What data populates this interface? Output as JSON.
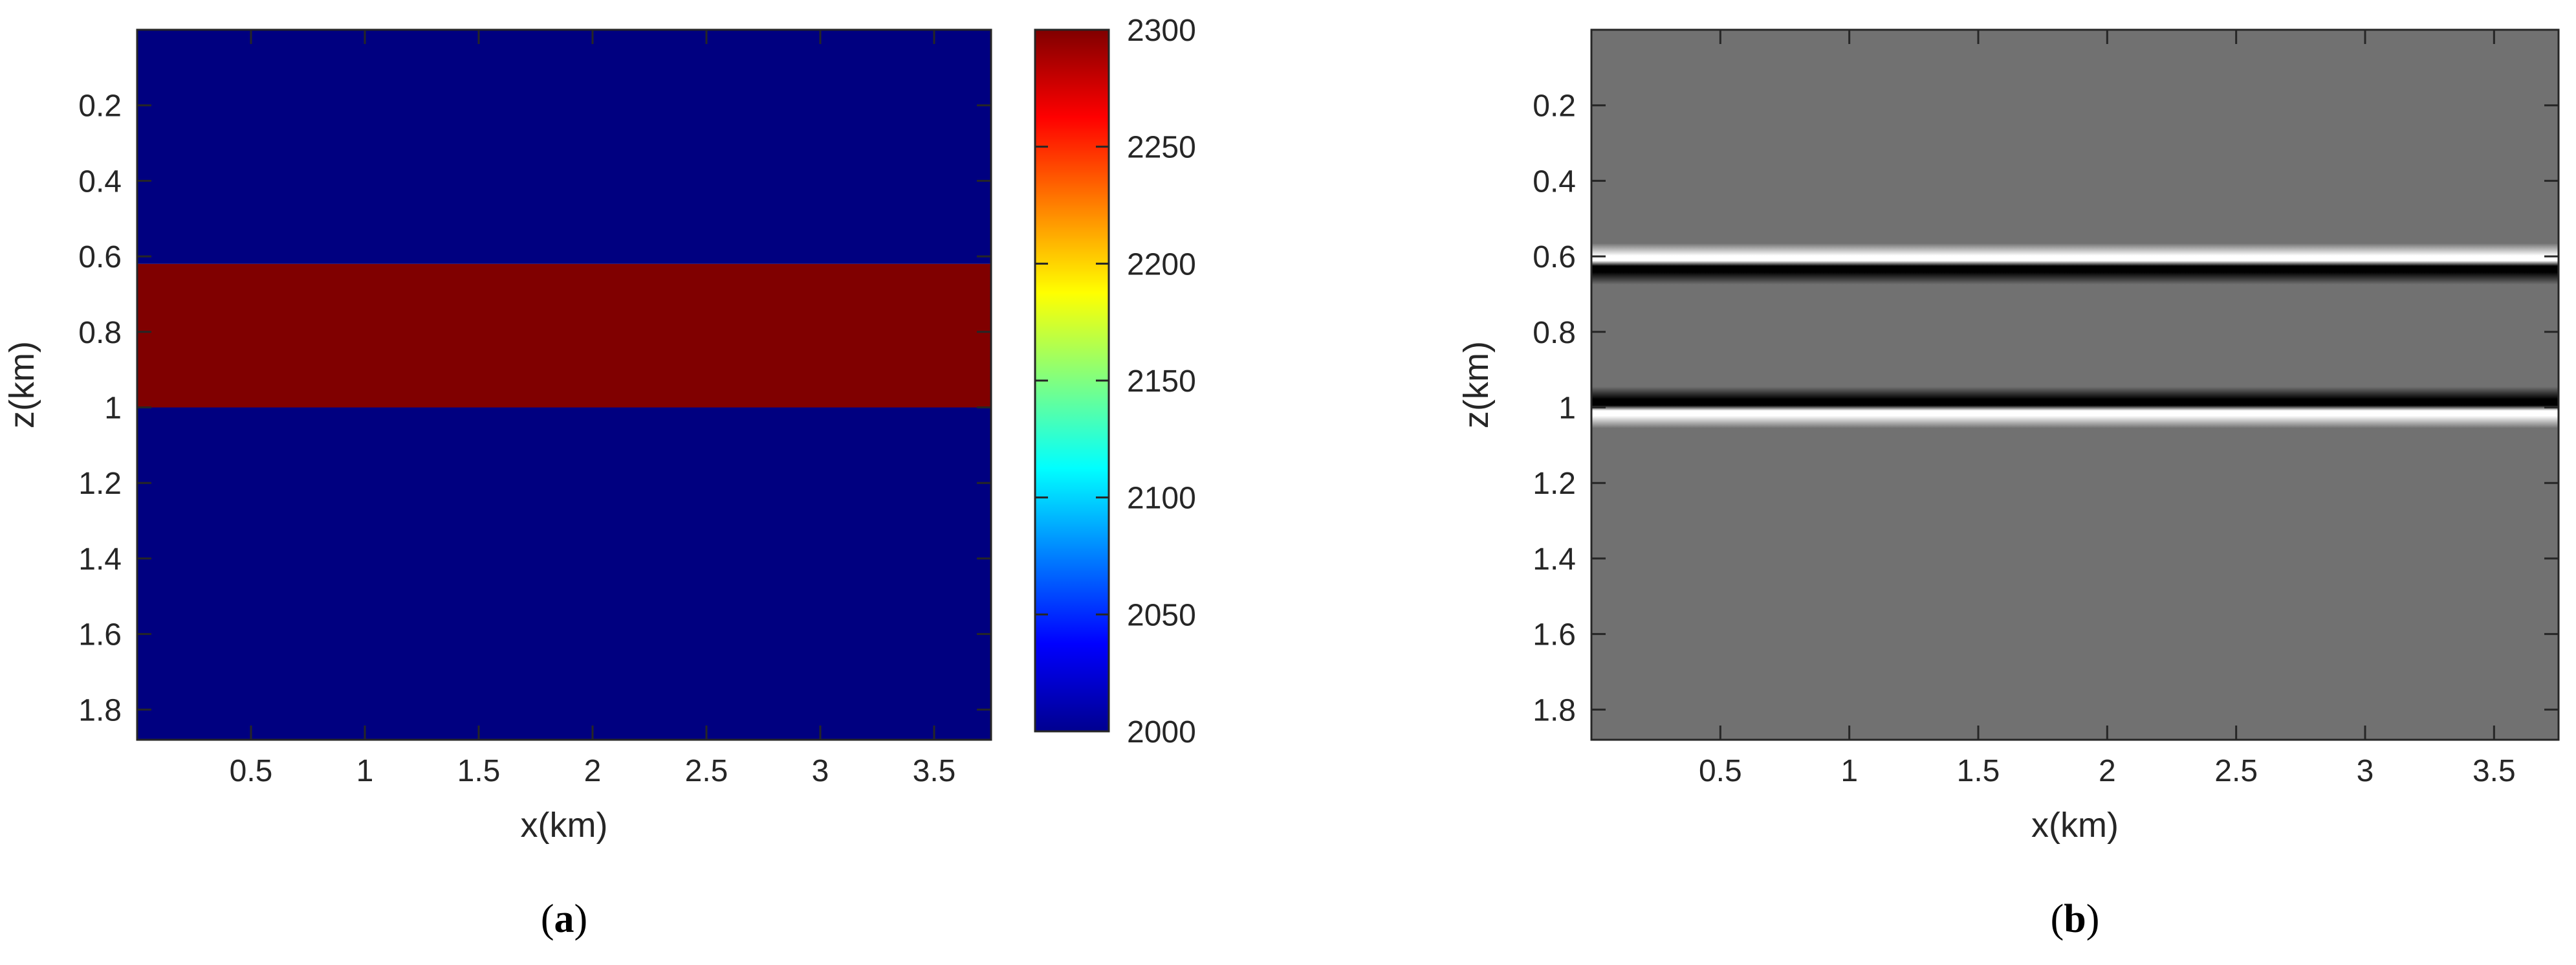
{
  "chart_data": [
    {
      "type": "heatmap",
      "panel_label_open": "(",
      "panel_label": "a",
      "panel_label_close": ")",
      "xlabel": "x(km)",
      "ylabel": "z(km)",
      "xlim": [
        0.0,
        3.75
      ],
      "ylim": [
        1.88,
        0.0
      ],
      "y_reversed": true,
      "xticks": [
        0.5,
        1,
        1.5,
        2,
        2.5,
        3,
        3.5
      ],
      "yticks": [
        0.2,
        0.4,
        0.6,
        0.8,
        1,
        1.2,
        1.4,
        1.6,
        1.8
      ],
      "colormap": "jet",
      "layers": [
        {
          "z_top": 0.0,
          "z_bottom": 0.62,
          "value": 2000
        },
        {
          "z_top": 0.62,
          "z_bottom": 1.0,
          "value": 2300
        },
        {
          "z_top": 1.0,
          "z_bottom": 1.88,
          "value": 2000
        }
      ],
      "colorbar": {
        "min": 2000,
        "max": 2300,
        "ticks": [
          2000,
          2050,
          2100,
          2150,
          2200,
          2250,
          2300
        ],
        "tick_labels": [
          "2000",
          "2050",
          "2100",
          "2150",
          "2200",
          "2250",
          "2300"
        ]
      }
    },
    {
      "type": "heatmap",
      "panel_label_open": "(",
      "panel_label": "b",
      "panel_label_close": ")",
      "xlabel": "x(km)",
      "ylabel": "z(km)",
      "xlim": [
        0.0,
        3.75
      ],
      "ylim": [
        1.88,
        0.0
      ],
      "y_reversed": true,
      "xticks": [
        0.5,
        1,
        1.5,
        2,
        2.5,
        3,
        3.5
      ],
      "yticks": [
        0.2,
        0.4,
        0.6,
        0.8,
        1,
        1.2,
        1.4,
        1.6,
        1.8
      ],
      "colormap": "gray",
      "background_value": 0,
      "reflectors": [
        {
          "z": 0.62,
          "polarity": "negative-over-positive"
        },
        {
          "z": 1.0,
          "polarity": "positive-over-negative"
        }
      ]
    }
  ]
}
